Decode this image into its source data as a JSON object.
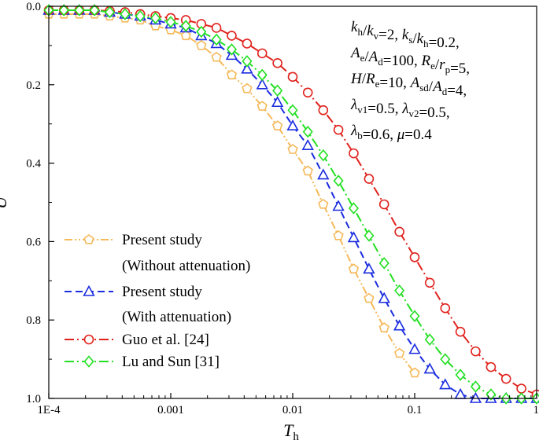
{
  "chart_data": {
    "type": "line",
    "title": "",
    "xlabel": {
      "main": "T",
      "sub": "h"
    },
    "ylabel": "U",
    "x_scale": "log",
    "xlim": [
      0.0001,
      1
    ],
    "ylim": [
      0,
      1
    ],
    "y_inverted": true,
    "x_ticks": [
      {
        "value": 0.0001,
        "label": "1E-4"
      },
      {
        "value": 0.001,
        "label": "0.001"
      },
      {
        "value": 0.01,
        "label": "0.01"
      },
      {
        "value": 0.1,
        "label": "0.1"
      },
      {
        "value": 1,
        "label": "1"
      }
    ],
    "y_ticks": [
      {
        "value": 0,
        "label": "0.0"
      },
      {
        "value": 0.2,
        "label": "0.2"
      },
      {
        "value": 0.4,
        "label": "0.4"
      },
      {
        "value": 0.6,
        "label": "0.6"
      },
      {
        "value": 0.8,
        "label": "0.8"
      },
      {
        "value": 1,
        "label": "1.0"
      }
    ],
    "grid": false,
    "legend_position": "bottom-left",
    "series": [
      {
        "name_lines": [
          "Present study",
          "(Without attenuation)"
        ],
        "color": "#F5B95A",
        "marker": "pentagon",
        "line_style": "dashdotdot",
        "x": [
          0.0001,
          0.000133,
          0.000178,
          0.000237,
          0.000316,
          0.000422,
          0.000562,
          0.00075,
          0.001,
          0.00133,
          0.00178,
          0.00237,
          0.00316,
          0.00422,
          0.00562,
          0.0075,
          0.01,
          0.0133,
          0.0178,
          0.0237,
          0.0316,
          0.0422,
          0.0562,
          0.075,
          0.1
        ],
        "y": [
          0.02,
          0.02,
          0.02,
          0.02,
          0.025,
          0.03,
          0.035,
          0.05,
          0.06,
          0.075,
          0.1,
          0.13,
          0.175,
          0.21,
          0.255,
          0.305,
          0.365,
          0.42,
          0.505,
          0.585,
          0.67,
          0.745,
          0.82,
          0.885,
          0.935
        ]
      },
      {
        "name_lines": [
          "Present study",
          "(With attenuation)"
        ],
        "color": "#1A2CE0",
        "marker": "triangle",
        "line_style": "dashed",
        "x": [
          0.0001,
          0.000133,
          0.000178,
          0.000237,
          0.000316,
          0.000422,
          0.000562,
          0.00075,
          0.001,
          0.00133,
          0.00178,
          0.00237,
          0.00316,
          0.00422,
          0.00562,
          0.0075,
          0.01,
          0.0133,
          0.0178,
          0.0237,
          0.0316,
          0.0422,
          0.0562,
          0.075,
          0.1,
          0.133,
          0.178,
          0.237,
          0.316,
          0.422,
          0.562,
          0.75,
          1
        ],
        "y": [
          0.01,
          0.01,
          0.01,
          0.01,
          0.015,
          0.02,
          0.025,
          0.035,
          0.045,
          0.055,
          0.075,
          0.095,
          0.125,
          0.16,
          0.2,
          0.245,
          0.305,
          0.355,
          0.43,
          0.51,
          0.59,
          0.67,
          0.745,
          0.815,
          0.875,
          0.925,
          0.965,
          0.99,
          1.0,
          1.0,
          1.0,
          1.0,
          1.0
        ]
      },
      {
        "name": "Guo et al. [24]",
        "color": "#E0221C",
        "marker": "circle",
        "line_style": "dashdot",
        "x": [
          0.0001,
          0.000133,
          0.000178,
          0.000237,
          0.000316,
          0.000422,
          0.000562,
          0.00075,
          0.001,
          0.00133,
          0.00178,
          0.00237,
          0.00316,
          0.00422,
          0.00562,
          0.0075,
          0.01,
          0.0133,
          0.0178,
          0.0237,
          0.0316,
          0.0422,
          0.0562,
          0.075,
          0.1,
          0.133,
          0.178,
          0.237,
          0.316,
          0.422,
          0.562,
          0.75,
          1
        ],
        "y": [
          0.01,
          0.01,
          0.01,
          0.01,
          0.012,
          0.015,
          0.02,
          0.025,
          0.03,
          0.035,
          0.045,
          0.055,
          0.075,
          0.095,
          0.12,
          0.145,
          0.18,
          0.22,
          0.265,
          0.315,
          0.375,
          0.44,
          0.505,
          0.575,
          0.64,
          0.705,
          0.77,
          0.83,
          0.88,
          0.92,
          0.95,
          0.975,
          0.99
        ]
      },
      {
        "name": "Lu and Sun [31]",
        "color": "#22E022",
        "marker": "diamond",
        "line_style": "dashdot",
        "x": [
          0.0001,
          0.000133,
          0.000178,
          0.000237,
          0.000316,
          0.000422,
          0.000562,
          0.00075,
          0.001,
          0.00133,
          0.00178,
          0.00237,
          0.00316,
          0.00422,
          0.00562,
          0.0075,
          0.01,
          0.0133,
          0.0178,
          0.0237,
          0.0316,
          0.0422,
          0.0562,
          0.075,
          0.1,
          0.133,
          0.178,
          0.237,
          0.316,
          0.422,
          0.562,
          0.75,
          1
        ],
        "y": [
          0.01,
          0.01,
          0.01,
          0.01,
          0.015,
          0.02,
          0.025,
          0.03,
          0.04,
          0.05,
          0.065,
          0.085,
          0.11,
          0.14,
          0.175,
          0.215,
          0.265,
          0.32,
          0.38,
          0.445,
          0.515,
          0.585,
          0.655,
          0.725,
          0.79,
          0.85,
          0.9,
          0.94,
          0.97,
          0.99,
          1.0,
          1.0,
          1.0
        ]
      }
    ],
    "annotation_lines": [
      [
        {
          "t": "k",
          "i": 1
        },
        {
          "t": "h",
          "sub": 1
        },
        {
          "t": "/"
        },
        {
          "t": "k",
          "i": 1
        },
        {
          "t": "v",
          "sub": 1
        },
        {
          "t": "=2, "
        },
        {
          "t": "k",
          "i": 1
        },
        {
          "t": "s",
          "sub": 1
        },
        {
          "t": "/"
        },
        {
          "t": "k",
          "i": 1
        },
        {
          "t": "h",
          "sub": 1
        },
        {
          "t": "=0.2,"
        }
      ],
      [
        {
          "t": "A",
          "i": 1
        },
        {
          "t": "e",
          "sub": 1
        },
        {
          "t": "/"
        },
        {
          "t": "A",
          "i": 1
        },
        {
          "t": "d",
          "sub": 1
        },
        {
          "t": "=100, "
        },
        {
          "t": "R",
          "i": 1
        },
        {
          "t": "e",
          "sub": 1
        },
        {
          "t": "/"
        },
        {
          "t": "r",
          "i": 1
        },
        {
          "t": "p",
          "sub": 1
        },
        {
          "t": "=5,"
        }
      ],
      [
        {
          "t": "H",
          "i": 1
        },
        {
          "t": "/"
        },
        {
          "t": "R",
          "i": 1
        },
        {
          "t": "e",
          "sub": 1
        },
        {
          "t": "=10,  "
        },
        {
          "t": "A",
          "i": 1
        },
        {
          "t": "sd",
          "sub": 1
        },
        {
          "t": "/"
        },
        {
          "t": "A",
          "i": 1
        },
        {
          "t": "d",
          "sub": 1
        },
        {
          "t": "=4,"
        }
      ],
      [
        {
          "t": "λ",
          "i": 1
        },
        {
          "t": "v1",
          "sub": 1
        },
        {
          "t": "=0.5,  "
        },
        {
          "t": "λ",
          "i": 1
        },
        {
          "t": "v2",
          "sub": 1
        },
        {
          "t": "=0.5,"
        }
      ],
      [
        {
          "t": "λ",
          "i": 1
        },
        {
          "t": "b",
          "sub": 1
        },
        {
          "t": "=0.6, "
        },
        {
          "t": "μ",
          "i": 1
        },
        {
          "t": "=0.4"
        }
      ]
    ]
  }
}
